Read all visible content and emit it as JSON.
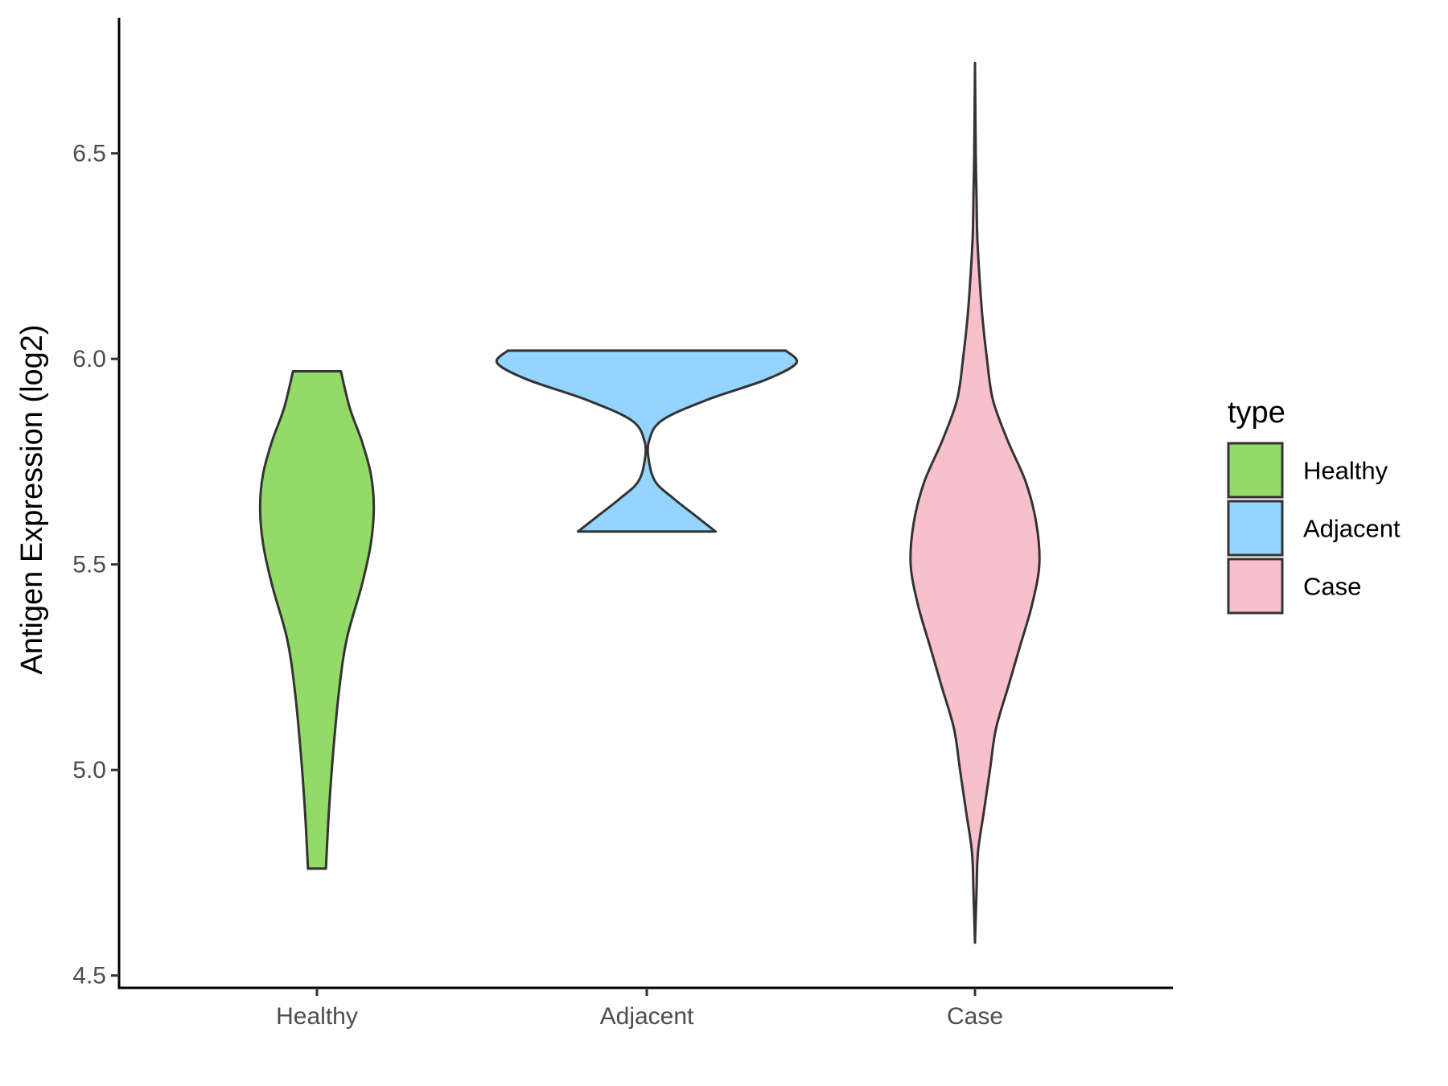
{
  "chart_data": {
    "type": "violin",
    "ylabel": "Antigen Expression (log2)",
    "xlabel": "",
    "ylim": [
      4.47,
      6.83
    ],
    "yticks": [
      4.5,
      5.0,
      5.5,
      6.0,
      6.5
    ],
    "ytick_labels": [
      "4.5",
      "5.0",
      "5.5",
      "6.0",
      "6.5"
    ],
    "categories": [
      "Healthy",
      "Adjacent",
      "Case"
    ],
    "legend": {
      "title": "type",
      "placement": "right",
      "entries": [
        "Healthy",
        "Adjacent",
        "Case"
      ]
    },
    "series": [
      {
        "name": "Healthy",
        "color": "#93DA69",
        "min": 4.76,
        "max": 5.97,
        "density": [
          [
            4.76,
            0.06
          ],
          [
            4.9,
            0.08
          ],
          [
            5.05,
            0.11
          ],
          [
            5.2,
            0.15
          ],
          [
            5.32,
            0.2
          ],
          [
            5.45,
            0.3
          ],
          [
            5.55,
            0.36
          ],
          [
            5.64,
            0.38
          ],
          [
            5.72,
            0.36
          ],
          [
            5.8,
            0.3
          ],
          [
            5.88,
            0.22
          ],
          [
            5.97,
            0.16
          ]
        ]
      },
      {
        "name": "Adjacent",
        "color": "#94D4FF",
        "min": 5.58,
        "max": 6.02,
        "density": [
          [
            5.58,
            0.46
          ],
          [
            5.62,
            0.32
          ],
          [
            5.66,
            0.18
          ],
          [
            5.7,
            0.06
          ],
          [
            5.75,
            0.015
          ],
          [
            5.8,
            0.015
          ],
          [
            5.85,
            0.1
          ],
          [
            5.9,
            0.4
          ],
          [
            5.95,
            0.8
          ],
          [
            5.99,
            1.0
          ],
          [
            6.02,
            0.93
          ]
        ]
      },
      {
        "name": "Case",
        "color": "#F7C0CB",
        "min": 4.58,
        "max": 6.72,
        "density": [
          [
            4.58,
            0.0
          ],
          [
            4.7,
            0.01
          ],
          [
            4.8,
            0.02
          ],
          [
            4.9,
            0.06
          ],
          [
            5.0,
            0.1
          ],
          [
            5.1,
            0.14
          ],
          [
            5.2,
            0.22
          ],
          [
            5.3,
            0.3
          ],
          [
            5.4,
            0.38
          ],
          [
            5.5,
            0.43
          ],
          [
            5.6,
            0.41
          ],
          [
            5.7,
            0.34
          ],
          [
            5.8,
            0.22
          ],
          [
            5.9,
            0.12
          ],
          [
            6.0,
            0.08
          ],
          [
            6.1,
            0.05
          ],
          [
            6.2,
            0.03
          ],
          [
            6.3,
            0.015
          ],
          [
            6.4,
            0.01
          ],
          [
            6.5,
            0.005
          ],
          [
            6.72,
            0.0
          ]
        ]
      }
    ]
  }
}
